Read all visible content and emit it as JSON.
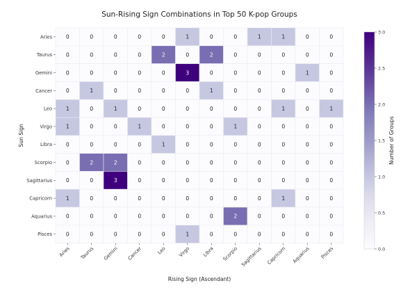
{
  "chart_data": {
    "type": "heatmap",
    "title": "Sun-Rising Sign Combinations in Top 50 K-pop Groups",
    "xlabel": "Rising Sign (Ascendant)",
    "ylabel": "Sun Sign",
    "x_categories": [
      "Aries",
      "Taurus",
      "Gemini",
      "Cancer",
      "Leo",
      "Virgo",
      "Libra",
      "Scorpio",
      "Sagittarius",
      "Capricorn",
      "Aquarius",
      "Pisces"
    ],
    "y_categories": [
      "Aries",
      "Taurus",
      "Gemini",
      "Cancer",
      "Leo",
      "Virgo",
      "Libra",
      "Scorpio",
      "Sagittarius",
      "Capricorn",
      "Aquarius",
      "Pisces"
    ],
    "values": [
      [
        0,
        0,
        0,
        0,
        0,
        1,
        0,
        0,
        1,
        1,
        0,
        0
      ],
      [
        0,
        0,
        0,
        0,
        2,
        0,
        2,
        0,
        0,
        0,
        0,
        0
      ],
      [
        0,
        0,
        0,
        0,
        0,
        3,
        0,
        0,
        0,
        0,
        1,
        0
      ],
      [
        0,
        1,
        0,
        0,
        0,
        0,
        1,
        0,
        0,
        0,
        0,
        0
      ],
      [
        1,
        0,
        1,
        0,
        0,
        0,
        0,
        0,
        0,
        1,
        0,
        1
      ],
      [
        1,
        0,
        0,
        1,
        0,
        0,
        0,
        1,
        0,
        0,
        0,
        0
      ],
      [
        0,
        0,
        0,
        0,
        1,
        0,
        0,
        0,
        0,
        0,
        0,
        0
      ],
      [
        0,
        2,
        2,
        0,
        0,
        0,
        0,
        0,
        0,
        0,
        0,
        0
      ],
      [
        0,
        0,
        3,
        0,
        0,
        0,
        0,
        0,
        0,
        0,
        0,
        0
      ],
      [
        1,
        0,
        0,
        0,
        0,
        0,
        0,
        0,
        0,
        1,
        0,
        0
      ],
      [
        0,
        0,
        0,
        0,
        0,
        0,
        0,
        2,
        0,
        0,
        0,
        0
      ],
      [
        0,
        0,
        0,
        0,
        0,
        1,
        0,
        0,
        0,
        0,
        0,
        0
      ]
    ],
    "colorbar": {
      "label": "Number of Groups",
      "range": [
        0,
        3
      ],
      "ticks": [
        "0.0",
        "0.5",
        "1.0",
        "1.5",
        "2.0",
        "2.5",
        "3.0"
      ],
      "colormap": "Purples"
    },
    "grid": true
  }
}
